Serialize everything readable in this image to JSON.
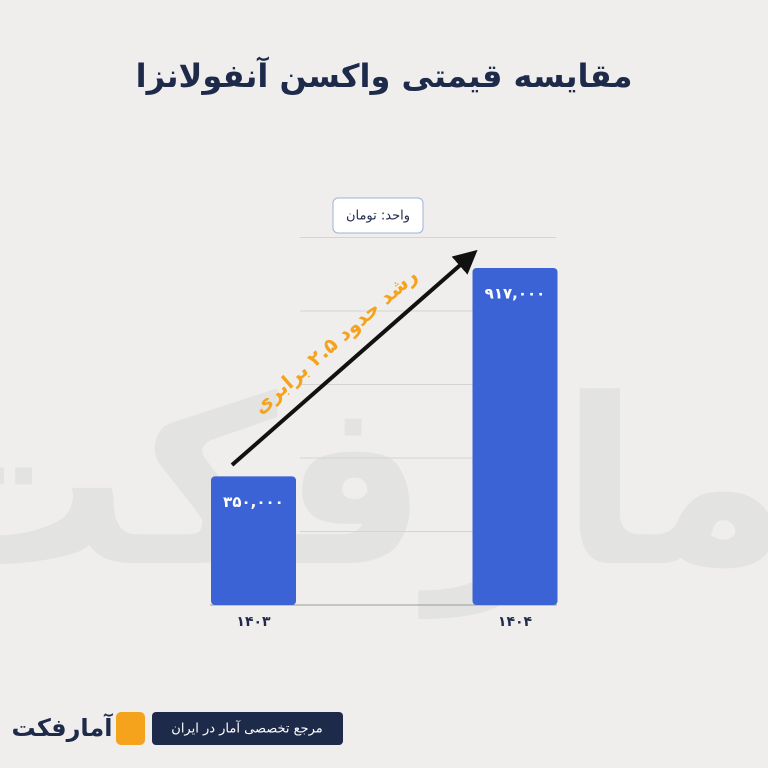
{
  "chart_data": {
    "type": "bar",
    "title": "مقایسه قیمتی واکسن آنفولانزا",
    "unit_label": "واحد: تومان",
    "annotation": "رشد حدود ۲.۵ برابری",
    "categories": [
      "۱۴۰۳",
      "۱۴۰۴"
    ],
    "values": [
      350000,
      917000
    ],
    "value_labels": [
      "۳۵۰,۰۰۰",
      "۹۱۷,۰۰۰"
    ],
    "color": "#3b63d6",
    "ylim": [
      0,
      1000000
    ],
    "yticks": [
      0,
      200000,
      400000,
      600000,
      800000,
      1000000
    ],
    "grid": true
  },
  "footer": {
    "brand": "آمارفکت",
    "tagline": "مرجع تخصصی آمار در ایران"
  }
}
